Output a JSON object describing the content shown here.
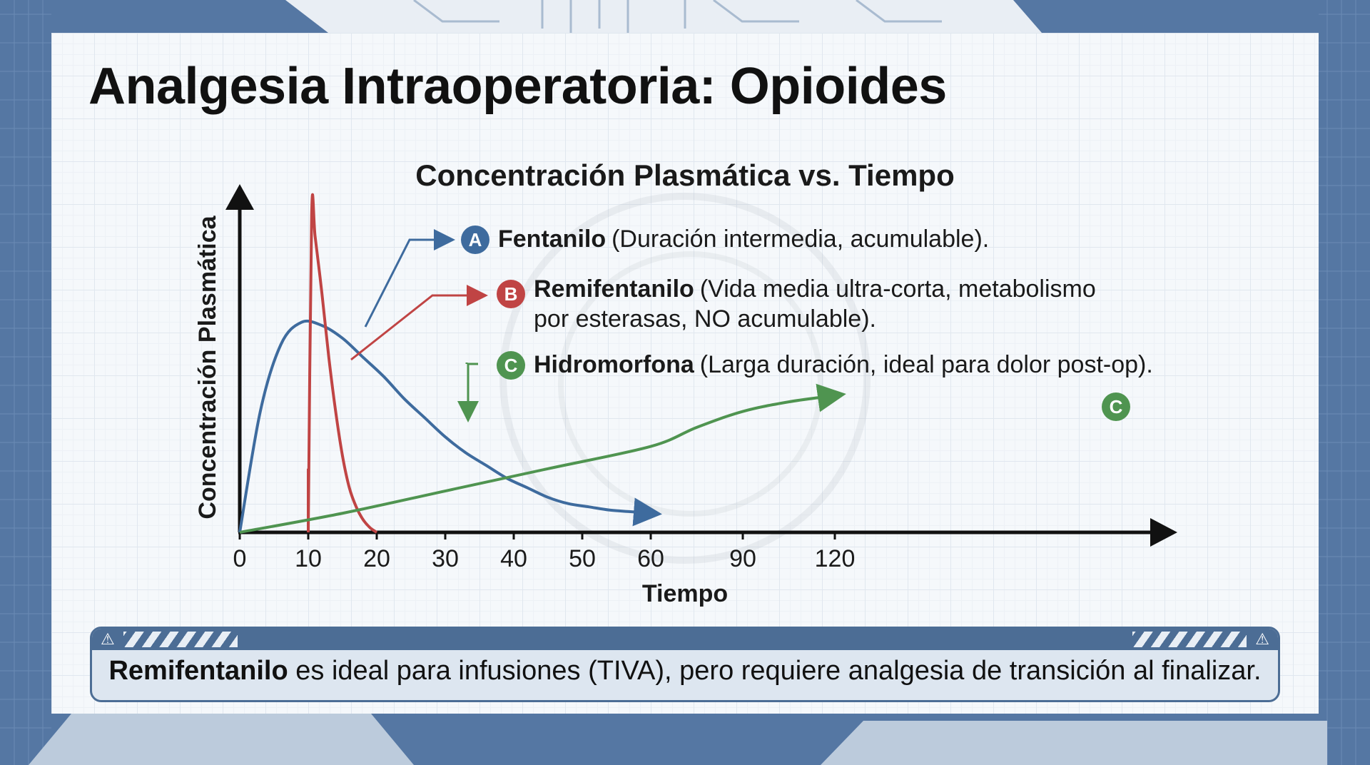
{
  "slide": {
    "title": "Analgesia Intraoperatoria: Opioides",
    "note": {
      "strong": "Remifentanilo",
      "rest": " es ideal para infusiones (TIVA), pero requiere analgesia de transición al finalizar."
    }
  },
  "colors": {
    "fentanilo": "#3e6b9e",
    "remifentanilo": "#c04444",
    "hidromorfona": "#4f9450",
    "frame": "#5577a3"
  },
  "chart_data": {
    "type": "line",
    "title": "Concentración Plasmática vs. Tiempo",
    "xlabel": "Tiempo",
    "ylabel": "Concentración Plasmática",
    "xticks": [
      "0",
      "10",
      "20",
      "30",
      "40",
      "50",
      "60",
      "90",
      "120"
    ],
    "xtick_values": [
      0,
      10,
      20,
      30,
      40,
      50,
      60,
      90,
      120
    ],
    "xlim": [
      0,
      120
    ],
    "ylim": [
      0,
      1
    ],
    "grid": true,
    "legend": "annotations",
    "series": [
      {
        "name": "Fentanilo",
        "badge": "A",
        "description": "(Duración intermedia, acumulable).",
        "color": "#3e6b9e",
        "x": [
          0,
          3,
          6,
          9,
          12,
          15,
          18,
          21,
          24,
          27,
          30,
          33,
          36,
          39,
          42,
          45,
          48,
          51,
          54,
          57,
          60
        ],
        "y": [
          0,
          0.38,
          0.59,
          0.66,
          0.65,
          0.61,
          0.55,
          0.49,
          0.42,
          0.36,
          0.3,
          0.25,
          0.21,
          0.17,
          0.14,
          0.11,
          0.09,
          0.08,
          0.07,
          0.065,
          0.06
        ]
      },
      {
        "name": "Remifentanilo",
        "badge": "B",
        "description_lines": [
          "(Vida media ultra-corta, metabolismo",
          "por esterasas, NO acumulable)."
        ],
        "color": "#c04444",
        "x": [
          10,
          10.5,
          11,
          12,
          13,
          14,
          15,
          16,
          17,
          18,
          19,
          20
        ],
        "y": [
          0,
          1.0,
          0.93,
          0.75,
          0.55,
          0.38,
          0.24,
          0.14,
          0.08,
          0.04,
          0.015,
          0
        ]
      },
      {
        "name": "Hidromorfona",
        "badge": "C",
        "description": "(Larga duración, ideal para dolor post-op).",
        "color": "#4f9450",
        "x": [
          0,
          15,
          30,
          45,
          60,
          75,
          90,
          105,
          120
        ],
        "y": [
          0,
          0.06,
          0.13,
          0.2,
          0.27,
          0.33,
          0.38,
          0.41,
          0.43
        ]
      }
    ]
  }
}
